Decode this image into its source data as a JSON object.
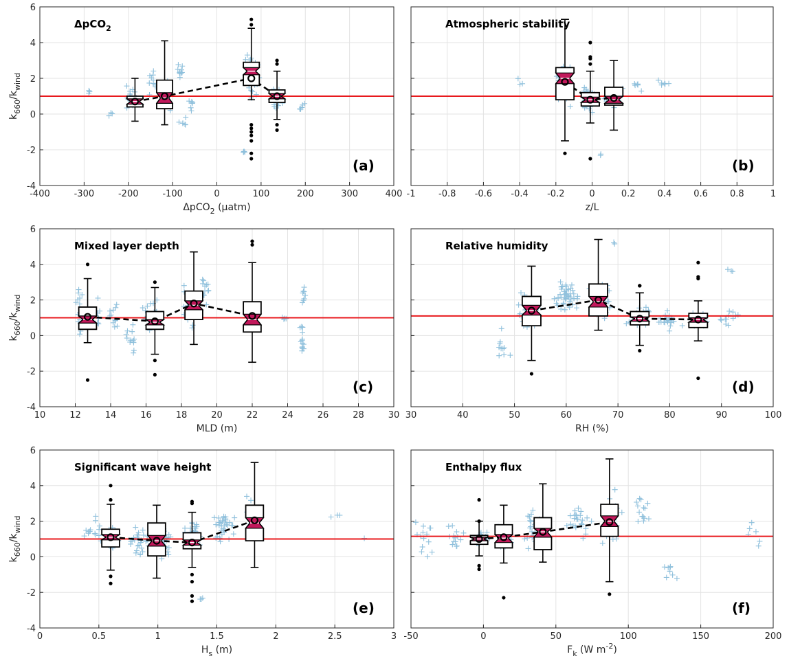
{
  "figure": {
    "reference_line_color": "#e8191d",
    "scatter_color": "#8fc0dc",
    "box_fill_color": "#c2185b",
    "trend_color": "#000000",
    "grid": true
  },
  "chart_data": [
    {
      "type": "box-scatter",
      "title": "ΔpCO₂",
      "panel_label": "(a)",
      "xlabel": "ΔpCO₂ (μatm)",
      "ylabel": "k660/kwind",
      "xlim": [
        -400,
        400
      ],
      "ylim": [
        -4,
        6
      ],
      "xticks": [
        -400,
        -300,
        -200,
        -100,
        0,
        100,
        200,
        300,
        400
      ],
      "xtick_labels": [
        "-400",
        "-300",
        "-200",
        "-100",
        "0",
        "100",
        "200",
        "300",
        "400"
      ],
      "yticks": [
        -4,
        -2,
        0,
        2,
        4,
        6
      ],
      "ytick_labels": [
        "-4",
        "-2",
        "0",
        "2",
        "4",
        "6"
      ],
      "reference_y": 1,
      "box_width": 36,
      "boxes": [
        {
          "x": -185,
          "q1": 0.4,
          "median": 0.7,
          "q3": 1.0,
          "whisker_low": -0.4,
          "whisker_high": 2.0,
          "mean": 0.7,
          "notch_low": 0.55,
          "notch_high": 0.85,
          "outliers": []
        },
        {
          "x": -118,
          "q1": 0.3,
          "median": 0.9,
          "q3": 1.9,
          "whisker_low": -0.6,
          "whisker_high": 4.1,
          "mean": 1.0,
          "notch_low": 0.6,
          "notch_high": 1.2,
          "outliers": []
        },
        {
          "x": 78,
          "q1": 1.6,
          "median": 2.4,
          "q3": 2.9,
          "whisker_low": 0.8,
          "whisker_high": 4.8,
          "mean": 2.0,
          "notch_low": 2.2,
          "notch_high": 2.6,
          "outliers": [
            -0.6,
            -0.8,
            -1.0,
            -1.2,
            -1.5,
            -2.2,
            -2.5,
            5.0,
            5.3
          ]
        },
        {
          "x": 136,
          "q1": 0.65,
          "median": 1.0,
          "q3": 1.35,
          "whisker_low": -0.3,
          "whisker_high": 2.4,
          "mean": 1.0,
          "notch_low": 0.85,
          "notch_high": 1.15,
          "outliers": [
            -0.6,
            -0.9,
            2.8,
            3.0
          ]
        }
      ],
      "clusters": [
        {
          "x": -290,
          "dx": 14,
          "y": 1.2,
          "dy": 0.2,
          "n": 3
        },
        {
          "x": -240,
          "dx": 16,
          "y": 0.0,
          "dy": 0.5,
          "n": 3
        },
        {
          "x": -195,
          "dx": 28,
          "y": 0.9,
          "dy": 0.9,
          "n": 18
        },
        {
          "x": -145,
          "dx": 20,
          "y": 1.9,
          "dy": 1.4,
          "n": 10
        },
        {
          "x": -115,
          "dx": 16,
          "y": 1.1,
          "dy": 1.3,
          "n": 12
        },
        {
          "x": -85,
          "dx": 12,
          "y": 2.4,
          "dy": 0.5,
          "n": 10
        },
        {
          "x": -75,
          "dx": 14,
          "y": -0.4,
          "dy": 0.3,
          "n": 6
        },
        {
          "x": -55,
          "dx": 10,
          "y": 0.5,
          "dy": 0.5,
          "n": 6
        },
        {
          "x": 78,
          "dx": 20,
          "y": 2.1,
          "dy": 1.5,
          "n": 50
        },
        {
          "x": 62,
          "dx": 8,
          "y": -2.0,
          "dy": 0.4,
          "n": 4
        },
        {
          "x": 135,
          "dx": 18,
          "y": 1.0,
          "dy": 0.7,
          "n": 25
        },
        {
          "x": 190,
          "dx": 12,
          "y": 0.4,
          "dy": 0.3,
          "n": 6
        }
      ]
    },
    {
      "type": "box-scatter",
      "title": "Atmospheric stability",
      "panel_label": "(b)",
      "xlabel": "z/L",
      "ylabel": "",
      "xlim": [
        -1,
        1
      ],
      "ylim": [
        -4,
        6
      ],
      "xticks": [
        -1,
        -0.8,
        -0.6,
        -0.4,
        -0.2,
        0,
        0.2,
        0.4,
        0.6,
        0.8,
        1
      ],
      "xtick_labels": [
        "-1",
        "-0.8",
        "-0.6",
        "-0.4",
        "-0.2",
        "0",
        "0.2",
        "0.4",
        "0.6",
        "0.8",
        "1"
      ],
      "yticks": [
        -4,
        -2,
        0,
        2,
        4,
        6
      ],
      "ytick_labels": [],
      "reference_y": 1,
      "box_width": 0.1,
      "boxes": [
        {
          "x": -0.15,
          "q1": 0.8,
          "median": 2.0,
          "q3": 2.6,
          "whisker_low": -1.5,
          "whisker_high": 5.3,
          "mean": 1.8,
          "notch_low": 1.7,
          "notch_high": 2.3,
          "outliers": [
            -2.2
          ]
        },
        {
          "x": -0.01,
          "q1": 0.45,
          "median": 0.8,
          "q3": 1.2,
          "whisker_low": -0.5,
          "whisker_high": 2.4,
          "mean": 0.8,
          "notch_low": 0.65,
          "notch_high": 0.95,
          "outliers": [
            -2.5,
            2.8,
            3.1,
            3.2,
            4.0
          ]
        },
        {
          "x": 0.12,
          "q1": 0.5,
          "median": 0.8,
          "q3": 1.5,
          "whisker_low": -0.9,
          "whisker_high": 3.0,
          "mean": 0.9,
          "notch_low": 0.6,
          "notch_high": 1.0,
          "outliers": []
        }
      ],
      "clusters": [
        {
          "x": -0.15,
          "dx": 0.06,
          "y": 1.8,
          "dy": 1.6,
          "n": 40
        },
        {
          "x": -0.02,
          "dx": 0.06,
          "y": 0.9,
          "dy": 1.0,
          "n": 45
        },
        {
          "x": 0.12,
          "dx": 0.06,
          "y": 1.0,
          "dy": 0.9,
          "n": 25
        },
        {
          "x": 0.25,
          "dx": 0.04,
          "y": 1.5,
          "dy": 0.4,
          "n": 6
        },
        {
          "x": -0.42,
          "dx": 0.06,
          "y": 2.0,
          "dy": 0.7,
          "n": 3
        },
        {
          "x": 0.4,
          "dx": 0.05,
          "y": 1.8,
          "dy": 0.8,
          "n": 6
        },
        {
          "x": 0.06,
          "dx": 0.03,
          "y": -2.3,
          "dy": 0.2,
          "n": 2
        }
      ]
    },
    {
      "type": "box-scatter",
      "title": "Mixed layer depth",
      "panel_label": "(c)",
      "xlabel": "MLD (m)",
      "ylabel": "k660/kwind",
      "xlim": [
        10,
        30
      ],
      "ylim": [
        -4,
        6
      ],
      "xticks": [
        10,
        12,
        14,
        16,
        18,
        20,
        22,
        24,
        26,
        28,
        30
      ],
      "xtick_labels": [
        "10",
        "12",
        "14",
        "16",
        "18",
        "20",
        "22",
        "24",
        "26",
        "28",
        "30"
      ],
      "yticks": [
        -4,
        -2,
        0,
        2,
        4,
        6
      ],
      "ytick_labels": [
        "-4",
        "-2",
        "0",
        "2",
        "4",
        "6"
      ],
      "reference_y": 1,
      "box_width": 1.0,
      "boxes": [
        {
          "x": 12.7,
          "q1": 0.35,
          "median": 0.9,
          "q3": 1.6,
          "whisker_low": -0.4,
          "whisker_high": 3.2,
          "mean": 1.05,
          "notch_low": 0.7,
          "notch_high": 1.1,
          "outliers": [
            4.0,
            -2.5
          ]
        },
        {
          "x": 16.5,
          "q1": 0.35,
          "median": 0.75,
          "q3": 1.35,
          "whisker_low": -1.05,
          "whisker_high": 2.7,
          "mean": 0.8,
          "notch_low": 0.6,
          "notch_high": 0.9,
          "outliers": [
            -1.4,
            -2.2,
            3.0
          ]
        },
        {
          "x": 18.7,
          "q1": 0.9,
          "median": 1.7,
          "q3": 2.5,
          "whisker_low": -0.5,
          "whisker_high": 4.7,
          "mean": 1.8,
          "notch_low": 1.45,
          "notch_high": 1.95,
          "outliers": []
        },
        {
          "x": 22.0,
          "q1": 0.2,
          "median": 0.9,
          "q3": 1.9,
          "whisker_low": -1.5,
          "whisker_high": 4.1,
          "mean": 1.1,
          "notch_low": 0.6,
          "notch_high": 1.2,
          "outliers": [
            5.1,
            5.3
          ]
        }
      ],
      "clusters": [
        {
          "x": 12.2,
          "dx": 0.3,
          "y": 1.5,
          "dy": 2.0,
          "n": 14
        },
        {
          "x": 13.2,
          "dx": 0.3,
          "y": 1.2,
          "dy": 1.4,
          "n": 12
        },
        {
          "x": 14.2,
          "dx": 0.4,
          "y": 1.0,
          "dy": 1.0,
          "n": 12
        },
        {
          "x": 15.2,
          "dx": 0.4,
          "y": -0.4,
          "dy": 1.4,
          "n": 12
        },
        {
          "x": 16.3,
          "dx": 0.6,
          "y": 1.1,
          "dy": 1.3,
          "n": 25
        },
        {
          "x": 18.4,
          "dx": 0.5,
          "y": 1.6,
          "dy": 1.4,
          "n": 30
        },
        {
          "x": 19.3,
          "dx": 0.4,
          "y": 2.6,
          "dy": 1.4,
          "n": 12
        },
        {
          "x": 22.0,
          "dx": 0.4,
          "y": 1.0,
          "dy": 1.4,
          "n": 20
        },
        {
          "x": 24.8,
          "dx": 0.2,
          "y": -0.4,
          "dy": 1.2,
          "n": 14
        },
        {
          "x": 24.9,
          "dx": 0.2,
          "y": 2.2,
          "dy": 0.7,
          "n": 8
        },
        {
          "x": 23.7,
          "dx": 0.3,
          "y": 1.0,
          "dy": 0.4,
          "n": 4
        }
      ]
    },
    {
      "type": "box-scatter",
      "title": "Relative humidity",
      "panel_label": "(d)",
      "xlabel": "RH (%)",
      "ylabel": "",
      "xlim": [
        30,
        100
      ],
      "ylim": [
        -4,
        6
      ],
      "xticks": [
        30,
        40,
        50,
        60,
        70,
        80,
        90,
        100
      ],
      "xtick_labels": [
        "30",
        "40",
        "50",
        "60",
        "70",
        "80",
        "90",
        "100"
      ],
      "yticks": [
        -4,
        -2,
        0,
        2,
        4,
        6
      ],
      "ytick_labels": [],
      "reference_y": 1.1,
      "box_width": 3.6,
      "boxes": [
        {
          "x": 53.3,
          "q1": 0.55,
          "median": 1.4,
          "q3": 2.2,
          "whisker_low": -1.4,
          "whisker_high": 3.9,
          "mean": 1.4,
          "notch_low": 1.15,
          "notch_high": 1.7,
          "outliers": [
            -2.15
          ]
        },
        {
          "x": 66.2,
          "q1": 1.1,
          "median": 1.9,
          "q3": 2.9,
          "whisker_low": 0.3,
          "whisker_high": 5.4,
          "mean": 2.0,
          "notch_low": 1.6,
          "notch_high": 2.2,
          "outliers": []
        },
        {
          "x": 74.2,
          "q1": 0.6,
          "median": 0.95,
          "q3": 1.35,
          "whisker_low": -0.55,
          "whisker_high": 2.4,
          "mean": 0.95,
          "notch_low": 0.8,
          "notch_high": 1.05,
          "outliers": [
            -0.85,
            2.8,
            2.8
          ]
        },
        {
          "x": 85.5,
          "q1": 0.45,
          "median": 0.9,
          "q3": 1.25,
          "whisker_low": -0.3,
          "whisker_high": 1.95,
          "mean": 0.9,
          "notch_low": 0.75,
          "notch_high": 1.0,
          "outliers": [
            -2.4,
            3.2,
            3.3,
            4.1
          ]
        }
      ],
      "clusters": [
        {
          "x": 47.5,
          "dx": 2.0,
          "y": -0.5,
          "dy": 1.5,
          "n": 10
        },
        {
          "x": 52.5,
          "dx": 3.0,
          "y": 1.3,
          "dy": 1.5,
          "n": 28
        },
        {
          "x": 60.0,
          "dx": 3.5,
          "y": 2.2,
          "dy": 1.2,
          "n": 45
        },
        {
          "x": 67.0,
          "dx": 3.0,
          "y": 1.8,
          "dy": 1.5,
          "n": 40
        },
        {
          "x": 74.0,
          "dx": 3.0,
          "y": 1.0,
          "dy": 0.8,
          "n": 40
        },
        {
          "x": 80.0,
          "dx": 3.0,
          "y": 0.8,
          "dy": 0.7,
          "n": 20
        },
        {
          "x": 86.0,
          "dx": 2.5,
          "y": 0.9,
          "dy": 0.7,
          "n": 20
        },
        {
          "x": 91.5,
          "dx": 2.5,
          "y": 1.0,
          "dy": 0.5,
          "n": 12
        },
        {
          "x": 91.5,
          "dx": 1.0,
          "y": 3.7,
          "dy": 0.5,
          "n": 3
        },
        {
          "x": 69.0,
          "dx": 1.0,
          "y": 5.2,
          "dy": 0.2,
          "n": 2
        }
      ]
    },
    {
      "type": "box-scatter",
      "title": "Significant wave height",
      "panel_label": "(e)",
      "xlabel": "Hs (m)",
      "ylabel": "k660/kwind",
      "xlim": [
        0,
        3
      ],
      "ylim": [
        -4,
        6
      ],
      "xticks": [
        0,
        0.5,
        1,
        1.5,
        2,
        2.5,
        3
      ],
      "xtick_labels": [
        "0",
        "0.5",
        "1",
        "1.5",
        "2",
        "2.5",
        "3"
      ],
      "yticks": [
        -4,
        -2,
        0,
        2,
        4,
        6
      ],
      "ytick_labels": [
        "-4",
        "-2",
        "0",
        "2",
        "4",
        "6"
      ],
      "reference_y": 1,
      "box_width": 0.15,
      "boxes": [
        {
          "x": 0.6,
          "q1": 0.55,
          "median": 1.1,
          "q3": 1.55,
          "whisker_low": -0.75,
          "whisker_high": 2.95,
          "mean": 1.1,
          "notch_low": 0.95,
          "notch_high": 1.25,
          "outliers": [
            -1.1,
            -1.5,
            3.2,
            4.0
          ]
        },
        {
          "x": 0.99,
          "q1": 0.05,
          "median": 0.9,
          "q3": 1.9,
          "whisker_low": -1.2,
          "whisker_high": 2.9,
          "mean": 0.9,
          "notch_low": 0.6,
          "notch_high": 1.2,
          "outliers": []
        },
        {
          "x": 1.29,
          "q1": 0.45,
          "median": 0.8,
          "q3": 1.35,
          "whisker_low": -0.6,
          "whisker_high": 2.5,
          "mean": 0.8,
          "notch_low": 0.65,
          "notch_high": 0.95,
          "outliers": [
            -1.0,
            -1.4,
            -2.2,
            -2.5,
            3.0,
            3.1
          ]
        },
        {
          "x": 1.82,
          "q1": 0.9,
          "median": 1.9,
          "q3": 2.9,
          "whisker_low": -0.6,
          "whisker_high": 5.3,
          "mean": 2.05,
          "notch_low": 1.6,
          "notch_high": 2.2,
          "outliers": []
        }
      ],
      "clusters": [
        {
          "x": 0.45,
          "dx": 0.1,
          "y": 1.5,
          "dy": 1.2,
          "n": 14
        },
        {
          "x": 0.6,
          "dx": 0.08,
          "y": 1.1,
          "dy": 1.0,
          "n": 20
        },
        {
          "x": 0.85,
          "dx": 0.12,
          "y": 0.9,
          "dy": 1.2,
          "n": 30
        },
        {
          "x": 1.05,
          "dx": 0.1,
          "y": 0.9,
          "dy": 1.2,
          "n": 30
        },
        {
          "x": 1.3,
          "dx": 0.1,
          "y": 1.2,
          "dy": 1.2,
          "n": 35
        },
        {
          "x": 1.55,
          "dx": 0.12,
          "y": 1.7,
          "dy": 1.3,
          "n": 35
        },
        {
          "x": 1.8,
          "dx": 0.1,
          "y": 2.3,
          "dy": 1.5,
          "n": 14
        },
        {
          "x": 1.37,
          "dx": 0.04,
          "y": -2.3,
          "dy": 0.3,
          "n": 3
        },
        {
          "x": 2.5,
          "dx": 0.08,
          "y": 2.3,
          "dy": 0.3,
          "n": 3
        },
        {
          "x": 2.75,
          "dx": 0.02,
          "y": 1.1,
          "dy": 0.1,
          "n": 1
        }
      ]
    },
    {
      "type": "box-scatter",
      "title": "Enthalpy flux",
      "panel_label": "(f)",
      "xlabel": "Fk (W m-2)",
      "ylabel": "",
      "xlim": [
        -50,
        200
      ],
      "ylim": [
        -4,
        6
      ],
      "xticks": [
        -50,
        0,
        50,
        100,
        150,
        200
      ],
      "xtick_labels": [
        "-50",
        "0",
        "50",
        "100",
        "150",
        "200"
      ],
      "yticks": [
        -4,
        -2,
        0,
        2,
        4,
        6
      ],
      "ytick_labels": [],
      "reference_y": 1.15,
      "box_width": 12,
      "boxes": [
        {
          "x": -3,
          "q1": 0.7,
          "median": 1.0,
          "q3": 1.2,
          "whisker_low": 0.05,
          "whisker_high": 2.0,
          "mean": 1.0,
          "notch_low": 0.9,
          "notch_high": 1.1,
          "outliers": [
            -0.5,
            -0.7,
            2.0,
            3.2
          ]
        },
        {
          "x": 14,
          "q1": 0.5,
          "median": 1.05,
          "q3": 1.8,
          "whisker_low": -0.35,
          "whisker_high": 2.9,
          "mean": 1.1,
          "notch_low": 0.8,
          "notch_high": 1.25,
          "outliers": [
            -2.3
          ]
        },
        {
          "x": 41,
          "q1": 0.4,
          "median": 1.4,
          "q3": 2.2,
          "whisker_low": -0.3,
          "whisker_high": 4.1,
          "mean": 1.4,
          "notch_low": 1.1,
          "notch_high": 1.6,
          "outliers": []
        },
        {
          "x": 87,
          "q1": 1.15,
          "median": 2.0,
          "q3": 2.95,
          "whisker_low": -1.4,
          "whisker_high": 5.5,
          "mean": 1.95,
          "notch_low": 1.7,
          "notch_high": 2.3,
          "outliers": [
            -2.1
          ]
        }
      ],
      "clusters": [
        {
          "x": -40,
          "dx": 8,
          "y": 1.0,
          "dy": 1.5,
          "n": 14
        },
        {
          "x": -20,
          "dx": 10,
          "y": 1.1,
          "dy": 1.2,
          "n": 14
        },
        {
          "x": 0,
          "dx": 7,
          "y": 1.0,
          "dy": 0.5,
          "n": 30
        },
        {
          "x": 15,
          "dx": 7,
          "y": 1.2,
          "dy": 1.0,
          "n": 25
        },
        {
          "x": 35,
          "dx": 10,
          "y": 1.5,
          "dy": 1.4,
          "n": 30
        },
        {
          "x": 65,
          "dx": 12,
          "y": 1.9,
          "dy": 1.3,
          "n": 25
        },
        {
          "x": 90,
          "dx": 10,
          "y": 2.2,
          "dy": 2.0,
          "n": 18
        },
        {
          "x": 110,
          "dx": 12,
          "y": 2.8,
          "dy": 2.0,
          "n": 14
        },
        {
          "x": 130,
          "dx": 12,
          "y": -1.0,
          "dy": 0.6,
          "n": 8
        },
        {
          "x": 185,
          "dx": 10,
          "y": 1.3,
          "dy": 1.2,
          "n": 6
        }
      ]
    }
  ]
}
